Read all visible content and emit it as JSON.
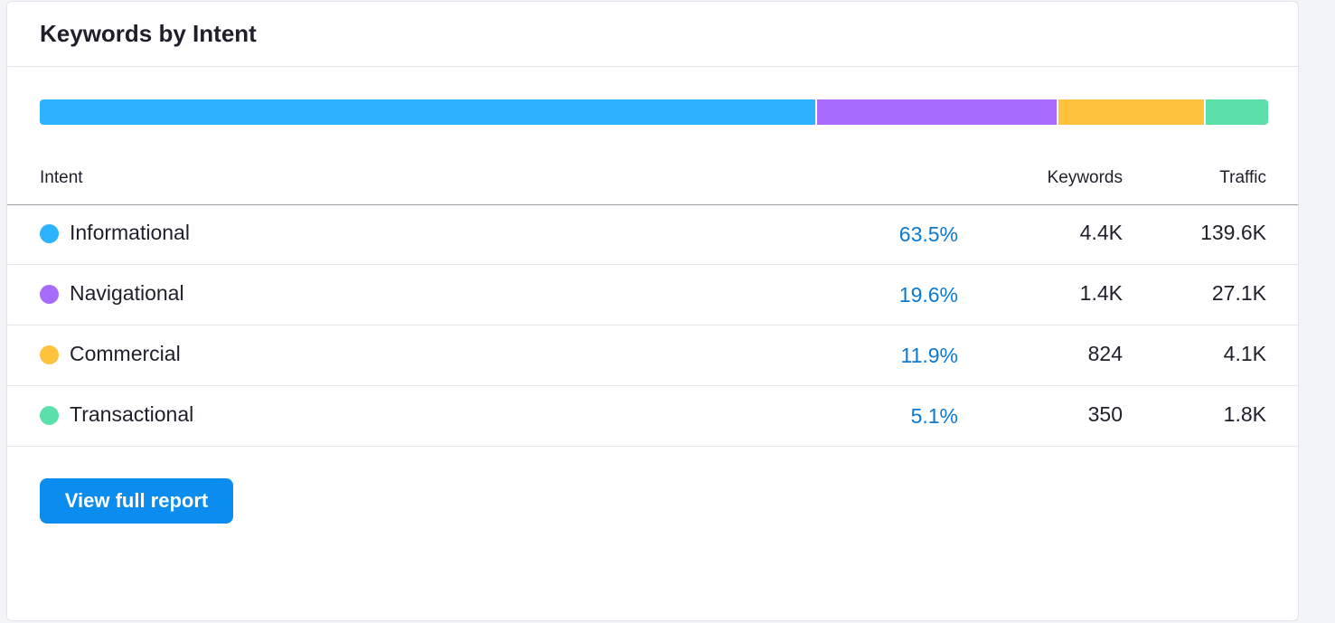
{
  "header": {
    "title": "Keywords by Intent"
  },
  "table": {
    "columns": [
      "Intent",
      "Keywords",
      "Traffic"
    ],
    "rows": [
      {
        "name": "Informational",
        "color": "#2bb3ff",
        "share": 63.5,
        "share_label": "63.5%",
        "keywords": "4.4K",
        "traffic": "139.6K"
      },
      {
        "name": "Navigational",
        "color": "#a86cfc",
        "share": 19.6,
        "share_label": "19.6%",
        "keywords": "1.4K",
        "traffic": "27.1K"
      },
      {
        "name": "Commercial",
        "color": "#ffc23d",
        "share": 11.9,
        "share_label": "11.9%",
        "keywords": "824",
        "traffic": "4.1K"
      },
      {
        "name": "Transactional",
        "color": "#5ce0ab",
        "share": 5.1,
        "share_label": "5.1%",
        "keywords": "350",
        "traffic": "1.8K"
      }
    ]
  },
  "button": {
    "label": "View full report"
  }
}
